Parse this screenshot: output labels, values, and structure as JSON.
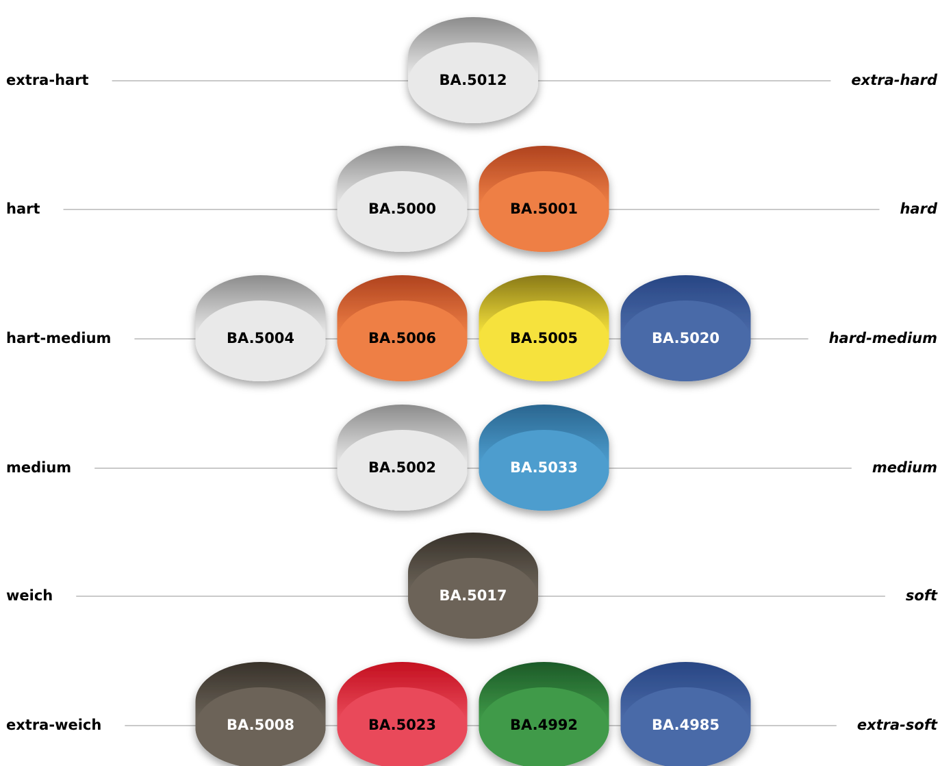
{
  "rows": [
    {
      "label_de": "extra-hart",
      "label_en": "extra-hard",
      "pads": [
        {
          "code": "BA.5012",
          "color": "#e9e9e9",
          "top": "#8c8c8c",
          "text_color": "#000000"
        }
      ]
    },
    {
      "label_de": "hart",
      "label_en": "hard",
      "pads": [
        {
          "code": "BA.5000",
          "color": "#e9e9e9",
          "top": "#8c8c8c",
          "text_color": "#000000"
        },
        {
          "code": "BA.5001",
          "color": "#ee7f45",
          "top": "#b0431f",
          "text_color": "#000000"
        }
      ]
    },
    {
      "label_de": "hart-medium",
      "label_en": "hard-medium",
      "pads": [
        {
          "code": "BA.5004",
          "color": "#e9e9e9",
          "top": "#8c8c8c",
          "text_color": "#000000"
        },
        {
          "code": "BA.5006",
          "color": "#ee7f45",
          "top": "#b0431f",
          "text_color": "#000000"
        },
        {
          "code": "BA.5005",
          "color": "#f6e23c",
          "top": "#8a7a18",
          "text_color": "#000000"
        },
        {
          "code": "BA.5020",
          "color": "#4a6aa8",
          "top": "#284684",
          "text_color": "#ffffff"
        }
      ]
    },
    {
      "label_de": "medium",
      "label_en": "medium",
      "pads": [
        {
          "code": "BA.5002",
          "color": "#e9e9e9",
          "top": "#8c8c8c",
          "text_color": "#000000"
        },
        {
          "code": "BA.5033",
          "color": "#4d9dce",
          "top": "#2a6690",
          "text_color": "#ffffff"
        }
      ]
    },
    {
      "label_de": "weich",
      "label_en": "soft",
      "pads": [
        {
          "code": "BA.5017",
          "color": "#6c6459",
          "top": "#38322a",
          "text_color": "#ffffff"
        }
      ]
    },
    {
      "label_de": "extra-weich",
      "label_en": "extra-soft",
      "pads": [
        {
          "code": "BA.5008",
          "color": "#6c6459",
          "top": "#38322a",
          "text_color": "#ffffff"
        },
        {
          "code": "BA.5023",
          "color": "#e94a5a",
          "top": "#c41020",
          "text_color": "#000000"
        },
        {
          "code": "BA.4992",
          "color": "#3f9a48",
          "top": "#1d5a28",
          "text_color": "#000000"
        },
        {
          "code": "BA.4985",
          "color": "#4a6aa8",
          "top": "#284684",
          "text_color": "#ffffff"
        }
      ]
    }
  ]
}
